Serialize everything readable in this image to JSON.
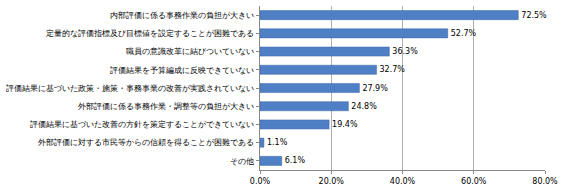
{
  "chart_data": {
    "type": "bar",
    "orientation": "horizontal",
    "categories": [
      "内部評価に係る事務作業の負担が大きい",
      "定量的な評価指標及び目標値を設定することが困難である",
      "職員の意識改革に結びついていない",
      "評価結果を予算編成に反映できていない",
      "評価結果に基づいた政策・施策・事務事業の改善が実践されていない",
      "外部評価に係る事務作業・調整等の負担が大きい",
      "評価結果に基づいた改善の方針を策定することができていない",
      "外部評価に対する市民等からの信頼を得ることが困難である",
      "その他"
    ],
    "values": [
      72.5,
      52.7,
      36.3,
      32.7,
      27.9,
      24.8,
      19.4,
      1.1,
      6.1
    ],
    "value_labels": [
      "72.5%",
      "52.7%",
      "36.3%",
      "32.7%",
      "27.9%",
      "24.8%",
      "19.4%",
      "1.1%",
      "6.1%"
    ],
    "data_labels": true,
    "color": "#4f7fc4",
    "xlim": [
      0,
      80
    ],
    "xticks": [
      {
        "value": 0,
        "label": "0.0%"
      },
      {
        "value": 20,
        "label": "20.0%"
      },
      {
        "value": 40,
        "label": "40.0%"
      },
      {
        "value": 60,
        "label": "60.0%"
      },
      {
        "value": 80,
        "label": "80.0%"
      }
    ],
    "grid": true
  }
}
